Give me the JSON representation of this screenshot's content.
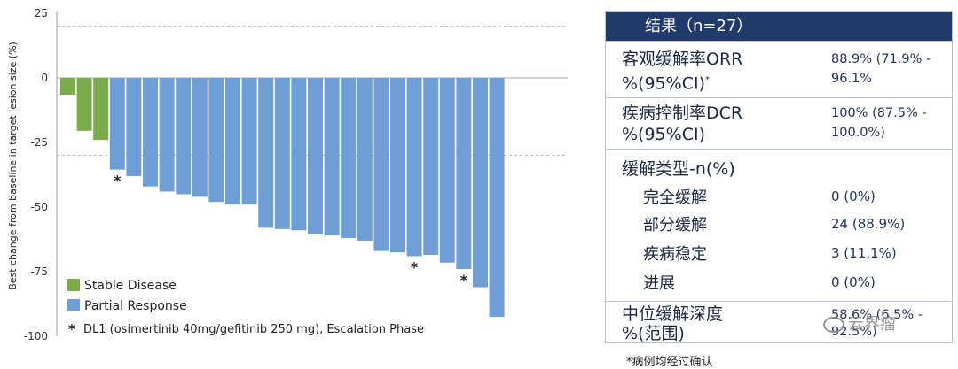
{
  "chart_data": {
    "type": "bar",
    "ylabel": "Best change from baseline in target lesion size (%)",
    "ylim": [
      -100,
      25
    ],
    "yticks": [
      25,
      0,
      -25,
      -50,
      -75,
      -100
    ],
    "dashed_reference_lines": [
      20,
      -30
    ],
    "values": [
      -6.5,
      -20.5,
      -24,
      -35.5,
      -38,
      -42,
      -44,
      -45,
      -46,
      -48,
      -49,
      -49,
      -58,
      -58.5,
      -59,
      -60.5,
      -61,
      -62,
      -63,
      -67,
      -67.5,
      -69,
      -68.5,
      -71.5,
      -74,
      -81,
      -92.5
    ],
    "categories_response": [
      "SD",
      "SD",
      "SD",
      "PR",
      "PR",
      "PR",
      "PR",
      "PR",
      "PR",
      "PR",
      "PR",
      "PR",
      "PR",
      "PR",
      "PR",
      "PR",
      "PR",
      "PR",
      "PR",
      "PR",
      "PR",
      "PR",
      "PR",
      "PR",
      "PR",
      "PR",
      "PR"
    ],
    "asterisk_bars": [
      3,
      21,
      24
    ],
    "colors": {
      "SD": "#7cab4c",
      "PR": "#6d9fd6"
    },
    "legend": [
      {
        "key": "SD",
        "label": "Stable Disease"
      },
      {
        "key": "PR",
        "label": "Partial Response"
      }
    ],
    "legend_note": "DL1 (osimertinib 40mg/gefitinib 250 mg), Escalation Phase",
    "legend_note_symbol": "*"
  },
  "panel": {
    "header": "结果（n=27）",
    "orr_label_1": "客观缓解率ORR",
    "orr_label_2": "%(95%CI)",
    "orr_sup": "*",
    "orr_value_1": "88.9% (71.9% -",
    "orr_value_2": "96.1%",
    "dcr_label_1": "疾病控制率DCR",
    "dcr_label_2": "%(95%CI)",
    "dcr_value_1": "100% (87.5% -",
    "dcr_value_2": "100.0%)",
    "type_label": "缓解类型-n(%)",
    "cr_label": "完全缓解",
    "cr_value": "0 (0%)",
    "pr_label": "部分缓解",
    "pr_value": "24 (88.9%)",
    "sd_label": "疾病稳定",
    "sd_value": "3 (11.1%)",
    "pd_label": "进展",
    "pd_value": "0 (0%)",
    "median_label_1": "中位缓解深度",
    "median_label_2": "%(范围)",
    "median_value_1": "58.6% (6.5% -",
    "median_value_2": "92.5%)"
  },
  "footnote": "*病例均经过确认",
  "watermark": "云界瘤"
}
